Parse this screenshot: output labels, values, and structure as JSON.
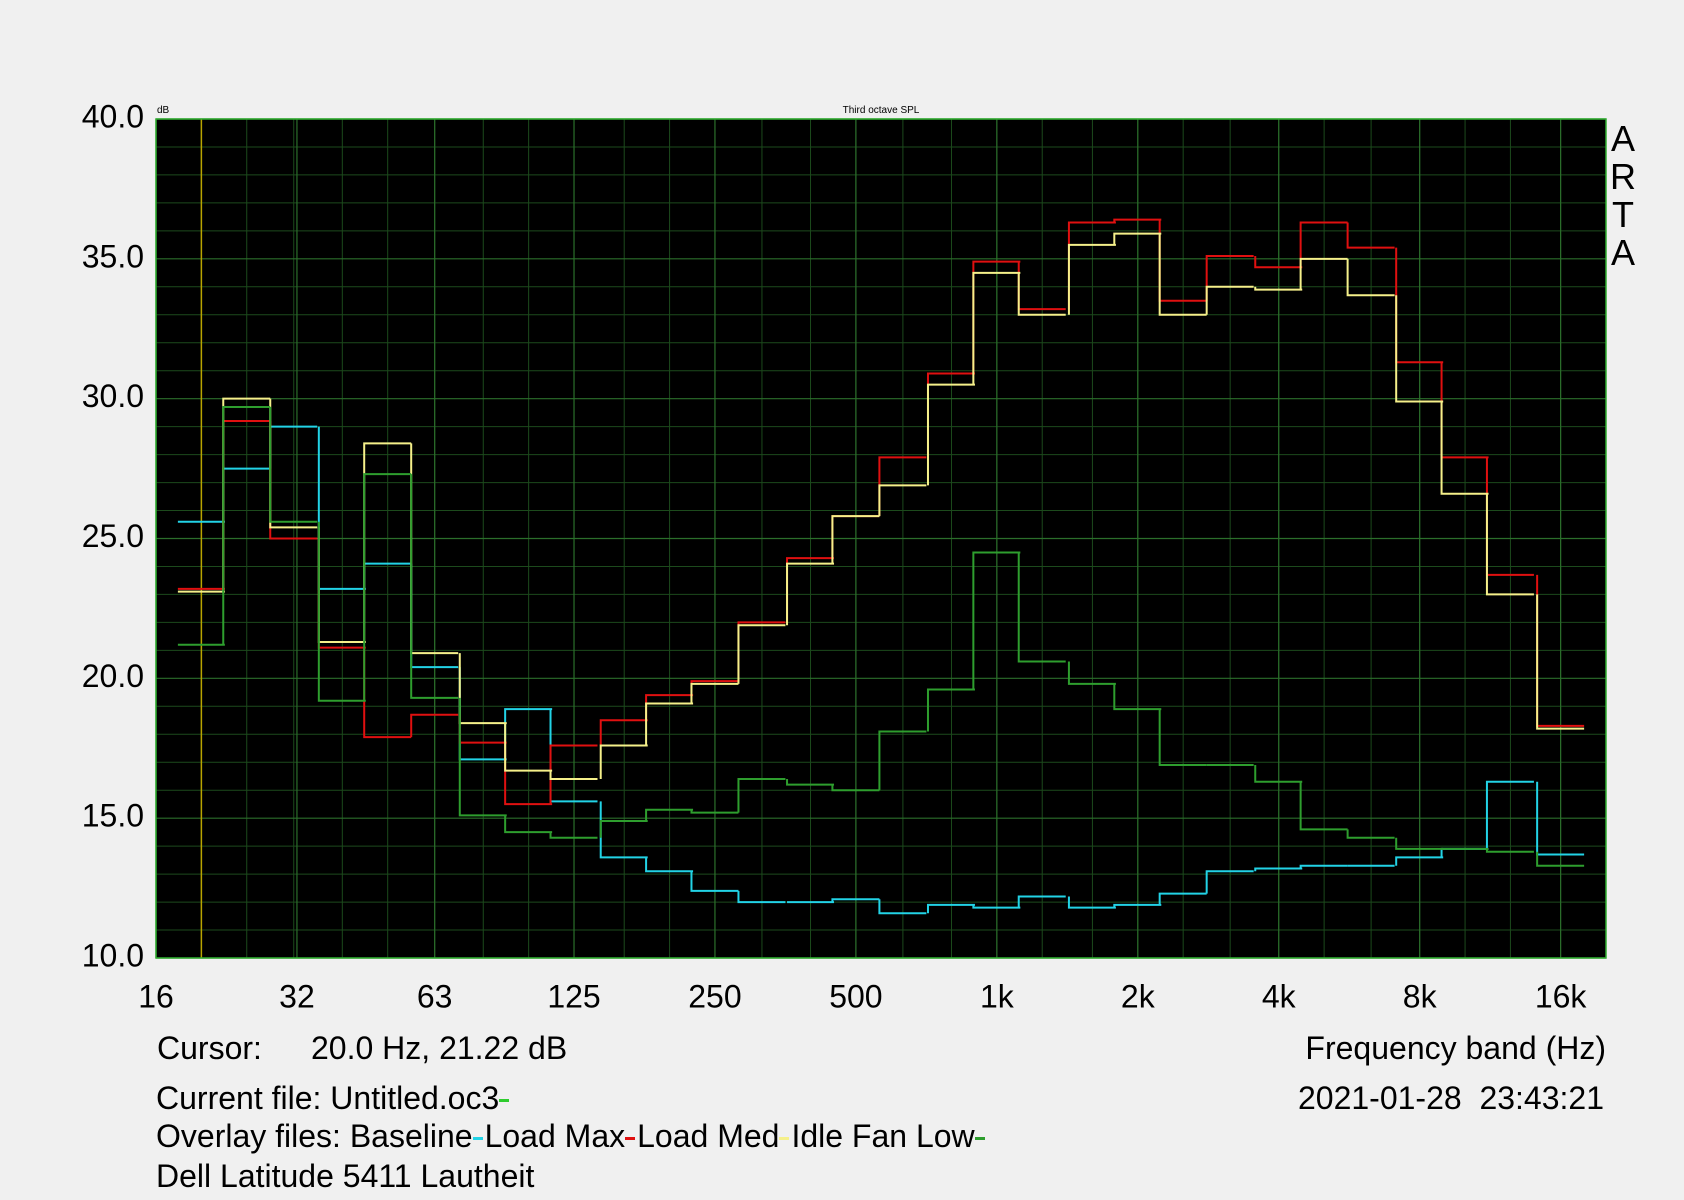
{
  "chart_data": {
    "type": "step",
    "title": "Third octave SPL",
    "y_unit": "dB",
    "watermark": "ARTA",
    "xlabel": "Frequency band (Hz)",
    "xscale": "log",
    "grid": true,
    "xlim": [
      16,
      20000
    ],
    "ylim": [
      10,
      40
    ],
    "xticks": [
      16,
      32,
      63,
      125,
      250,
      500,
      {
        "value": 1000,
        "label": "1k"
      },
      {
        "value": 2000,
        "label": "2k"
      },
      {
        "value": 4000,
        "label": "4k"
      },
      {
        "value": 8000,
        "label": "8k"
      },
      {
        "value": 16000,
        "label": "16k"
      }
    ],
    "yticks": [
      {
        "value": 10,
        "label": "10.0"
      },
      {
        "value": 15,
        "label": "15.0"
      },
      {
        "value": 20,
        "label": "20.0"
      },
      {
        "value": 25,
        "label": "25.0"
      },
      {
        "value": 30,
        "label": "30.0"
      },
      {
        "value": 35,
        "label": "35.0"
      },
      {
        "value": 40,
        "label": "40.0"
      }
    ],
    "x": [
      20,
      25,
      31.5,
      40,
      50,
      63,
      80,
      100,
      125,
      160,
      200,
      250,
      315,
      400,
      500,
      630,
      800,
      1000,
      1250,
      1600,
      2000,
      2500,
      3150,
      4000,
      5000,
      6300,
      8000,
      10000,
      12500,
      16000
    ],
    "series": [
      {
        "name": "Baseline",
        "color": "#22d3e6",
        "values": [
          25.6,
          27.5,
          29.0,
          23.2,
          24.1,
          20.4,
          17.1,
          18.9,
          15.6,
          13.6,
          13.1,
          12.4,
          12.0,
          12.0,
          12.1,
          11.6,
          11.9,
          11.8,
          12.2,
          11.8,
          11.9,
          12.3,
          13.1,
          13.2,
          13.3,
          13.3,
          13.6,
          13.9,
          16.3,
          13.7
        ]
      },
      {
        "name": "Load Max",
        "color": "#e01010",
        "values": [
          23.2,
          29.2,
          25.0,
          21.1,
          17.9,
          18.7,
          17.7,
          15.5,
          17.6,
          18.5,
          19.4,
          19.9,
          22.0,
          24.3,
          25.8,
          27.9,
          30.9,
          34.9,
          33.2,
          36.3,
          36.4,
          33.5,
          35.1,
          34.7,
          36.3,
          35.4,
          31.3,
          27.9,
          23.7,
          18.3
        ]
      },
      {
        "name": "Load Med",
        "color": "#f5f08a",
        "values": [
          23.1,
          30.0,
          25.4,
          21.3,
          28.4,
          20.9,
          18.4,
          16.7,
          16.4,
          17.6,
          19.1,
          19.8,
          21.9,
          24.1,
          25.8,
          26.9,
          30.5,
          34.5,
          33.0,
          35.5,
          35.9,
          33.0,
          34.0,
          33.9,
          35.0,
          33.7,
          29.9,
          26.6,
          23.0,
          18.2
        ]
      },
      {
        "name": "Idle Fan Low",
        "color": "#2e9e2e",
        "values": [
          21.2,
          29.7,
          25.6,
          19.2,
          27.3,
          19.3,
          15.1,
          14.5,
          14.3,
          14.9,
          15.3,
          15.2,
          16.4,
          16.2,
          16.0,
          18.1,
          19.6,
          24.5,
          20.6,
          19.8,
          18.9,
          16.9,
          16.9,
          16.3,
          14.6,
          14.3,
          13.9,
          13.9,
          13.8,
          13.3
        ]
      }
    ],
    "cursor": {
      "label": "Cursor:",
      "text": "20.0 Hz, 21.22 dB",
      "x": 20,
      "color": "#b8a400"
    },
    "current_file": {
      "label": "Current file:",
      "name": "Untitled.oc3",
      "color": "#2ecc2e"
    },
    "overlay_label": "Overlay files:",
    "note": "Dell Latitude 5411 Lautheit",
    "timestamp": "2021-01-28  23:43:21"
  }
}
